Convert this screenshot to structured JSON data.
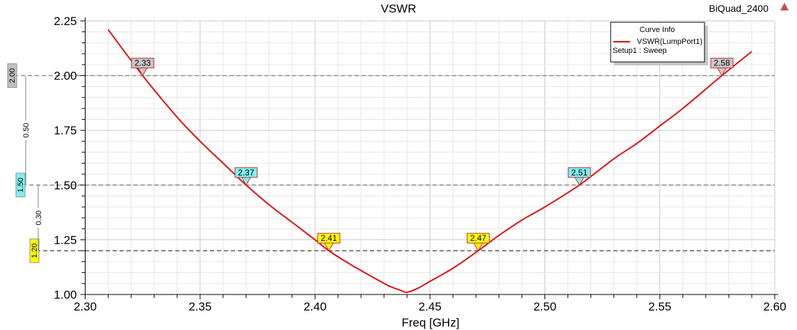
{
  "project_name": "BiQuad_2400",
  "chart_data": {
    "type": "line",
    "title": "VSWR",
    "xlabel": "Freq [GHz]",
    "ylabel": "",
    "xlim": [
      2.3,
      2.6
    ],
    "ylim": [
      1.0,
      2.25
    ],
    "x_ticks": [
      "2.30",
      "2.35",
      "2.40",
      "2.45",
      "2.50",
      "2.55",
      "2.60"
    ],
    "y_ticks": [
      "1.00",
      "1.25",
      "1.50",
      "1.75",
      "2.00",
      "2.25"
    ],
    "grid": true,
    "legend": {
      "title": "Curve Info",
      "placement": "top-right",
      "entries": [
        "VSWR(LumpPort1)"
      ],
      "subtitle": "Setup1 : Sweep"
    },
    "series": [
      {
        "name": "VSWR(LumpPort1)",
        "color": "#e01010",
        "x": [
          2.31,
          2.325,
          2.34,
          2.35,
          2.36,
          2.37,
          2.38,
          2.39,
          2.4,
          2.406,
          2.415,
          2.425,
          2.432,
          2.437,
          2.44,
          2.445,
          2.45,
          2.46,
          2.471,
          2.48,
          2.49,
          2.5,
          2.515,
          2.53,
          2.54,
          2.55,
          2.56,
          2.577,
          2.59
        ],
        "y": [
          2.21,
          2.0,
          1.81,
          1.7,
          1.6,
          1.5,
          1.41,
          1.33,
          1.25,
          1.2,
          1.14,
          1.08,
          1.04,
          1.02,
          1.01,
          1.03,
          1.06,
          1.12,
          1.2,
          1.27,
          1.34,
          1.4,
          1.5,
          1.62,
          1.69,
          1.77,
          1.85,
          2.0,
          2.11
        ]
      }
    ],
    "markers": [
      {
        "label": "2.33",
        "x": 2.325,
        "y": 2.0,
        "color": "#c8c8c8"
      },
      {
        "label": "2.37",
        "x": 2.37,
        "y": 1.5,
        "color": "#80f0f0"
      },
      {
        "label": "2.41",
        "x": 2.406,
        "y": 1.2,
        "color": "#ffff00"
      },
      {
        "label": "2.47",
        "x": 2.471,
        "y": 1.2,
        "color": "#ffff00"
      },
      {
        "label": "2.51",
        "x": 2.515,
        "y": 1.5,
        "color": "#80f0f0"
      },
      {
        "label": "2.58",
        "x": 2.577,
        "y": 2.0,
        "color": "#c8c8c8"
      }
    ],
    "ref_lines": [
      {
        "label": "2.00",
        "y": 2.0,
        "color": "#c0c0c0"
      },
      {
        "label": "1.50",
        "y": 1.5,
        "color": "#80f0f0"
      },
      {
        "label": "1.20",
        "y": 1.2,
        "color": "#ffff00"
      }
    ],
    "deltas": [
      {
        "label": "0.50",
        "from": 1.5,
        "to": 2.0
      },
      {
        "label": "0.30",
        "from": 1.2,
        "to": 1.5
      }
    ]
  }
}
